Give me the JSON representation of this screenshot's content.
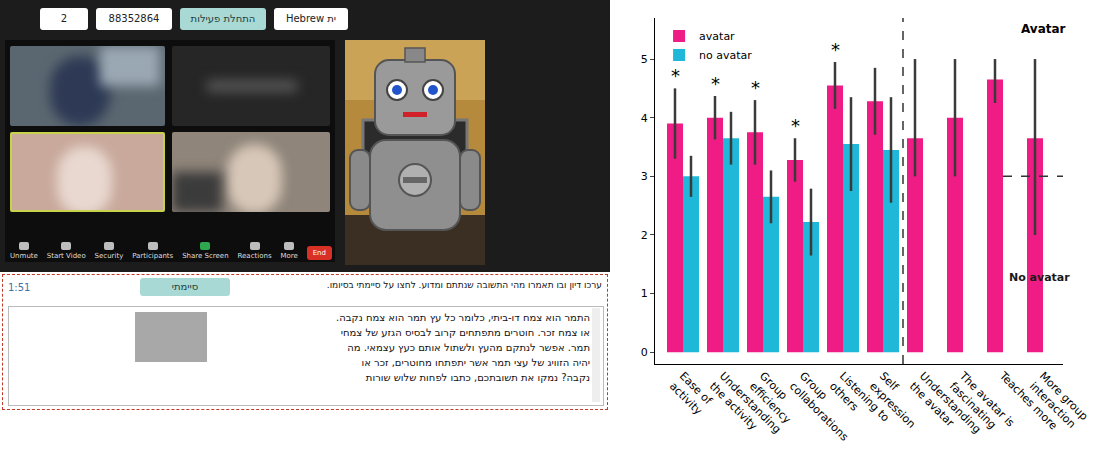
{
  "screenshot": {
    "top_bar": {
      "field_1": "2",
      "field_2": "88352864",
      "start_button": "התחלת פעילות",
      "language_select": "Hebrew ית"
    },
    "zoom_toolbar": [
      "Unmute",
      "Start Video",
      "Security",
      "Participants",
      "Share Screen",
      "Reactions",
      "More",
      "End"
    ],
    "timer": "1:51",
    "done_button": "סיימתי",
    "instruction": "ערכו דיון ובו תאמרו מהי התשובה שנתתם ומדוע. לחצו על סיימתי בסיומו.",
    "question_lines": [
      "התמר הוא צמח דו-ביתי, כלומר כל עץ תמר הוא צמח נקבה.",
      "או צמח זכר. חוטרים מתפתחים קרוב לבסיס הגזע של צמחי",
      "תמר. אפשר לנתקם מהעץ ולשתול אותם כעץ עצמאי. מה",
      "יהיה הזוויג של עצי תמר אשר יתפתחו מחוטרים, זכר או",
      "נקבה? נמקו את תשובתכם, כתבו לפחות שלוש שורות"
    ]
  },
  "chart_data": {
    "type": "bar",
    "categories": [
      "Ease of activity",
      "Understanding the activity",
      "Group efficiency",
      "Group collaborations",
      "Listening to others",
      "Self expression",
      "Understanding the avatar",
      "The avatar is fascinating",
      "Teaches more",
      "More group interaction"
    ],
    "series": [
      {
        "name": "avatar",
        "color": "#ee1c84",
        "values": [
          3.9,
          4.0,
          3.75,
          3.28,
          4.55,
          4.28,
          3.65,
          4.0,
          4.65,
          3.65
        ],
        "error_plus": [
          0.6,
          0.37,
          0.55,
          0.37,
          0.4,
          0.57,
          1.35,
          1.0,
          0.35,
          1.35
        ],
        "error_minus": [
          0.6,
          0.37,
          0.55,
          0.37,
          0.4,
          0.57,
          0.65,
          1.0,
          0.4,
          1.65
        ]
      },
      {
        "name": "no avatar",
        "color": "#1fb8d8",
        "values": [
          3.0,
          3.65,
          2.65,
          2.22,
          3.55,
          3.45,
          null,
          null,
          null,
          null
        ],
        "error_plus": [
          0.35,
          0.45,
          0.45,
          0.57,
          0.8,
          0.9,
          null,
          null,
          null,
          null
        ],
        "error_minus": [
          0.35,
          0.45,
          0.45,
          0.57,
          0.8,
          0.9,
          null,
          null,
          null,
          null
        ]
      }
    ],
    "ylim": [
      -0.2,
      5.7
    ],
    "yticks": [
      0,
      1,
      2,
      3,
      4,
      5
    ],
    "grid": false,
    "legend": "upper left",
    "annotations": [
      {
        "text": "*",
        "category": "Ease of activity"
      },
      {
        "text": "*",
        "category": "Understanding the activity"
      },
      {
        "text": "*",
        "category": "Group efficiency"
      },
      {
        "text": "*",
        "category": "Group collaborations"
      },
      {
        "text": "*",
        "category": "Listening to others"
      }
    ],
    "reference_lines": [
      {
        "value": 3,
        "categories": [
          "Teaches more",
          "More group interaction"
        ],
        "above_label": "Avatar",
        "below_label": "No avatar"
      }
    ]
  }
}
